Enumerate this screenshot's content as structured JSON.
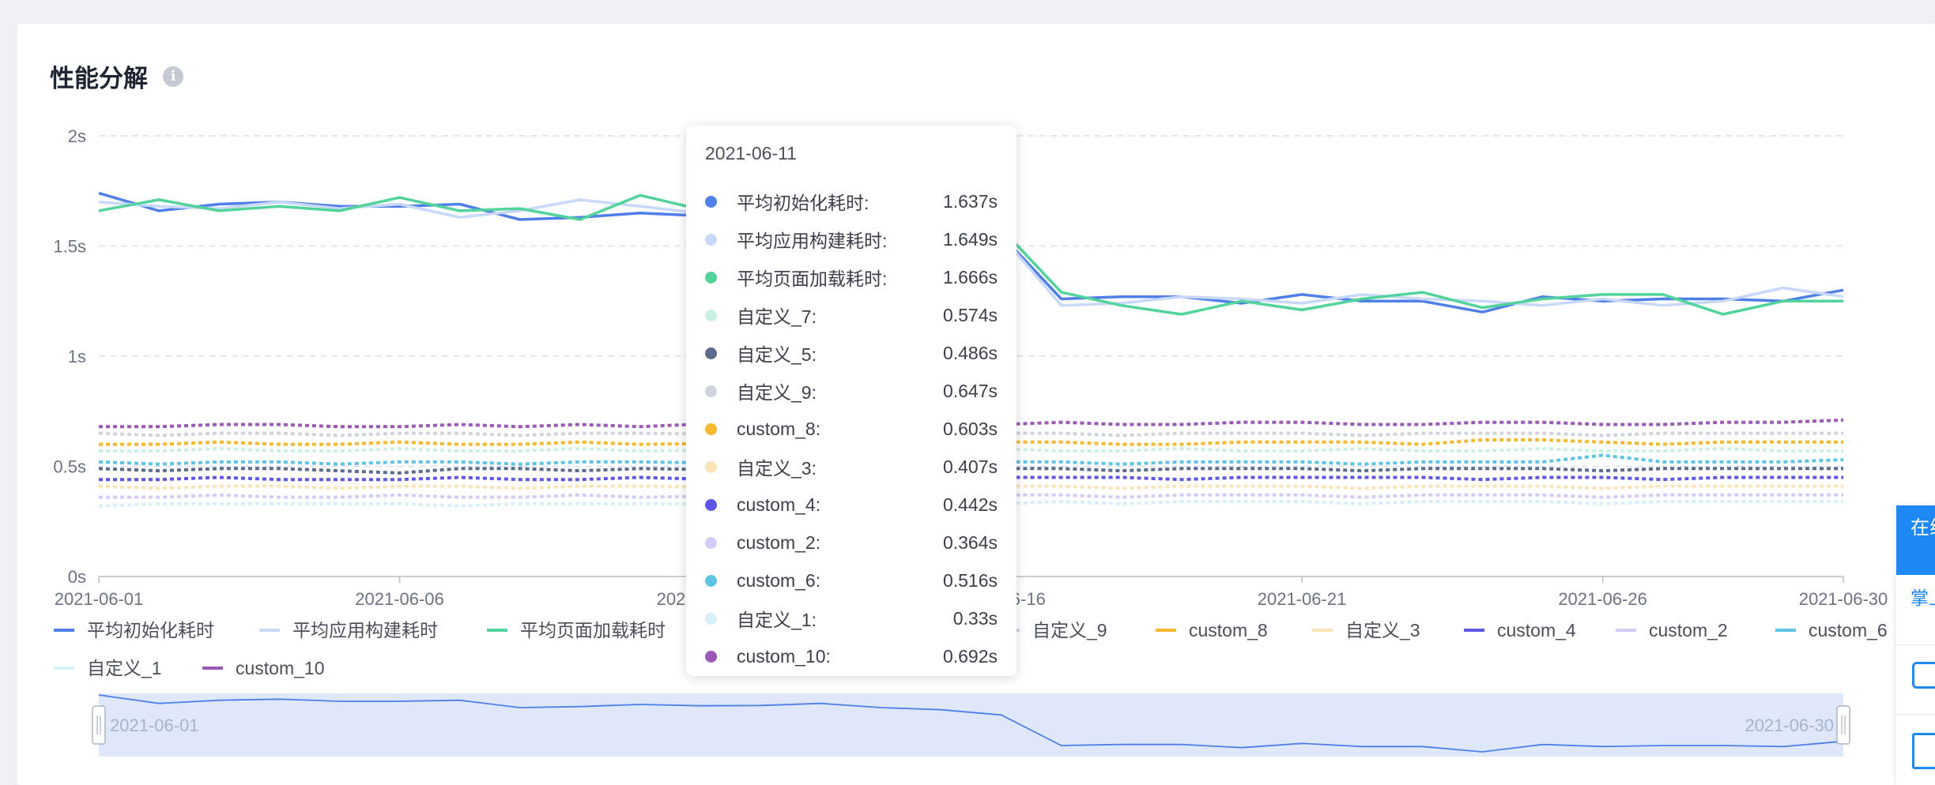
{
  "card": {
    "title": "性能分解",
    "info_icon": "info-icon"
  },
  "colors": {
    "grid": "#dcdfe6",
    "axis_text": "#6b7280",
    "zoom_fill": "#dfe7fb",
    "zoom_line": "#4f7fe8"
  },
  "chart_data": {
    "type": "line",
    "title": "性能分解",
    "y_ticks": [
      "0s",
      "0.5s",
      "1s",
      "1.5s",
      "2s"
    ],
    "ylim": [
      0,
      2
    ],
    "x_tick_labels": [
      "2021-06-01",
      "2021-06-06",
      "2021-06-11",
      "2021-06-16",
      "2021-06-21",
      "2021-06-26",
      "2021-06-30"
    ],
    "x": [
      "2021-06-01",
      "2021-06-02",
      "2021-06-03",
      "2021-06-04",
      "2021-06-05",
      "2021-06-06",
      "2021-06-07",
      "2021-06-08",
      "2021-06-09",
      "2021-06-10",
      "2021-06-11",
      "2021-06-12",
      "2021-06-13",
      "2021-06-14",
      "2021-06-15",
      "2021-06-16",
      "2021-06-17",
      "2021-06-18",
      "2021-06-19",
      "2021-06-20",
      "2021-06-21",
      "2021-06-22",
      "2021-06-23",
      "2021-06-24",
      "2021-06-25",
      "2021-06-26",
      "2021-06-27",
      "2021-06-28",
      "2021-06-29",
      "2021-06-30"
    ],
    "grid": true,
    "legend_position": "bottom",
    "series": [
      {
        "name": "平均初始化耗时",
        "color": "#4f7fe8",
        "dashed": false,
        "values": [
          1.74,
          1.66,
          1.69,
          1.7,
          1.68,
          1.68,
          1.69,
          1.62,
          1.63,
          1.65,
          1.637,
          1.64,
          1.66,
          1.62,
          1.6,
          1.55,
          1.26,
          1.27,
          1.27,
          1.24,
          1.28,
          1.25,
          1.25,
          1.2,
          1.27,
          1.25,
          1.26,
          1.26,
          1.25,
          1.3
        ]
      },
      {
        "name": "平均应用构建耗时",
        "color": "#c8d8fa",
        "dashed": false,
        "values": [
          1.7,
          1.68,
          1.67,
          1.7,
          1.67,
          1.69,
          1.63,
          1.66,
          1.71,
          1.68,
          1.649,
          1.66,
          1.69,
          1.63,
          1.6,
          1.55,
          1.23,
          1.24,
          1.27,
          1.26,
          1.24,
          1.28,
          1.26,
          1.25,
          1.23,
          1.26,
          1.23,
          1.25,
          1.31,
          1.27
        ]
      },
      {
        "name": "平均页面加载耗时",
        "color": "#52d39b",
        "dashed": false,
        "values": [
          1.66,
          1.71,
          1.66,
          1.68,
          1.66,
          1.72,
          1.66,
          1.67,
          1.62,
          1.73,
          1.666,
          1.65,
          1.68,
          1.64,
          1.62,
          1.58,
          1.29,
          1.23,
          1.19,
          1.25,
          1.21,
          1.26,
          1.29,
          1.22,
          1.26,
          1.28,
          1.28,
          1.19,
          1.25,
          1.25
        ]
      },
      {
        "name": "自定义_7",
        "color": "#c9f0e2",
        "dashed": true,
        "values": [
          0.57,
          0.57,
          0.58,
          0.57,
          0.57,
          0.58,
          0.57,
          0.57,
          0.58,
          0.57,
          0.574,
          0.57,
          0.58,
          0.57,
          0.57,
          0.58,
          0.57,
          0.57,
          0.58,
          0.57,
          0.57,
          0.58,
          0.57,
          0.57,
          0.58,
          0.57,
          0.57,
          0.58,
          0.57,
          0.57
        ]
      },
      {
        "name": "自定义_5",
        "color": "#5b6b8c",
        "dashed": true,
        "values": [
          0.49,
          0.48,
          0.49,
          0.49,
          0.48,
          0.47,
          0.49,
          0.49,
          0.48,
          0.49,
          0.486,
          0.49,
          0.48,
          0.49,
          0.49,
          0.49,
          0.49,
          0.48,
          0.49,
          0.49,
          0.49,
          0.48,
          0.49,
          0.49,
          0.49,
          0.48,
          0.49,
          0.49,
          0.49,
          0.49
        ]
      },
      {
        "name": "自定义_9",
        "color": "#ced3de",
        "dashed": true,
        "values": [
          0.65,
          0.64,
          0.65,
          0.65,
          0.64,
          0.65,
          0.65,
          0.64,
          0.65,
          0.65,
          0.647,
          0.65,
          0.64,
          0.65,
          0.65,
          0.65,
          0.65,
          0.64,
          0.65,
          0.65,
          0.65,
          0.64,
          0.65,
          0.65,
          0.65,
          0.64,
          0.65,
          0.65,
          0.65,
          0.65
        ]
      },
      {
        "name": "custom_8",
        "color": "#f5b82e",
        "dashed": true,
        "values": [
          0.6,
          0.6,
          0.61,
          0.6,
          0.6,
          0.61,
          0.6,
          0.6,
          0.61,
          0.6,
          0.603,
          0.6,
          0.61,
          0.6,
          0.6,
          0.61,
          0.61,
          0.6,
          0.6,
          0.61,
          0.61,
          0.61,
          0.6,
          0.62,
          0.62,
          0.61,
          0.6,
          0.61,
          0.61,
          0.61
        ]
      },
      {
        "name": "自定义_3",
        "color": "#fbe3b6",
        "dashed": true,
        "values": [
          0.41,
          0.4,
          0.41,
          0.41,
          0.4,
          0.41,
          0.41,
          0.4,
          0.41,
          0.41,
          0.407,
          0.41,
          0.4,
          0.41,
          0.41,
          0.41,
          0.41,
          0.4,
          0.41,
          0.41,
          0.41,
          0.4,
          0.41,
          0.41,
          0.41,
          0.4,
          0.41,
          0.41,
          0.41,
          0.41
        ]
      },
      {
        "name": "custom_4",
        "color": "#5f55e6",
        "dashed": true,
        "values": [
          0.44,
          0.44,
          0.45,
          0.44,
          0.44,
          0.44,
          0.45,
          0.44,
          0.44,
          0.45,
          0.442,
          0.44,
          0.45,
          0.44,
          0.44,
          0.45,
          0.45,
          0.45,
          0.44,
          0.45,
          0.45,
          0.45,
          0.45,
          0.44,
          0.45,
          0.45,
          0.44,
          0.45,
          0.45,
          0.45
        ]
      },
      {
        "name": "custom_2",
        "color": "#d2cdf7",
        "dashed": true,
        "values": [
          0.36,
          0.36,
          0.37,
          0.36,
          0.36,
          0.37,
          0.36,
          0.36,
          0.37,
          0.36,
          0.364,
          0.36,
          0.37,
          0.36,
          0.36,
          0.37,
          0.37,
          0.36,
          0.37,
          0.37,
          0.37,
          0.36,
          0.37,
          0.37,
          0.37,
          0.36,
          0.37,
          0.37,
          0.37,
          0.37
        ]
      },
      {
        "name": "custom_6",
        "color": "#5ec4e3",
        "dashed": true,
        "values": [
          0.52,
          0.51,
          0.52,
          0.52,
          0.51,
          0.52,
          0.52,
          0.51,
          0.52,
          0.52,
          0.516,
          0.52,
          0.51,
          0.52,
          0.52,
          0.52,
          0.52,
          0.51,
          0.52,
          0.52,
          0.52,
          0.51,
          0.52,
          0.52,
          0.52,
          0.55,
          0.52,
          0.52,
          0.52,
          0.53
        ]
      },
      {
        "name": "自定义_1",
        "color": "#d6f0f8",
        "dashed": true,
        "values": [
          0.32,
          0.33,
          0.33,
          0.33,
          0.33,
          0.33,
          0.32,
          0.33,
          0.33,
          0.33,
          0.33,
          0.33,
          0.33,
          0.33,
          0.33,
          0.33,
          0.34,
          0.33,
          0.34,
          0.34,
          0.34,
          0.33,
          0.34,
          0.34,
          0.34,
          0.33,
          0.34,
          0.34,
          0.34,
          0.34
        ]
      },
      {
        "name": "custom_10",
        "color": "#9b59b6",
        "dashed": true,
        "values": [
          0.68,
          0.68,
          0.69,
          0.69,
          0.68,
          0.68,
          0.69,
          0.68,
          0.69,
          0.68,
          0.692,
          0.69,
          0.68,
          0.69,
          0.69,
          0.69,
          0.7,
          0.69,
          0.69,
          0.7,
          0.7,
          0.69,
          0.69,
          0.7,
          0.7,
          0.69,
          0.69,
          0.7,
          0.7,
          0.71
        ]
      }
    ],
    "legend_visible": [
      "平均初始化耗时",
      "平均应用构建耗时",
      "平均页面加载耗时",
      "自定义_7",
      "自定义_5",
      "自定义_9",
      "custom_8",
      "自定义_3",
      "custom_4",
      "custom_2",
      "custom_6",
      "自定义_1",
      "custom_10"
    ],
    "zoom_slider": {
      "start_label": "2021-06-01",
      "end_label": "2021-06-30"
    }
  },
  "tooltip": {
    "date": "2021-06-11",
    "rows": [
      {
        "label": "平均初始化耗时:",
        "value": "1.637s",
        "color": "#4f7fe8"
      },
      {
        "label": "平均应用构建耗时:",
        "value": "1.649s",
        "color": "#c8d8fa"
      },
      {
        "label": "平均页面加载耗时:",
        "value": "1.666s",
        "color": "#52d39b"
      },
      {
        "label": "自定义_7:",
        "value": "0.574s",
        "color": "#c9f0e2"
      },
      {
        "label": "自定义_5:",
        "value": "0.486s",
        "color": "#5b6b8c"
      },
      {
        "label": "自定义_9:",
        "value": "0.647s",
        "color": "#ced3de"
      },
      {
        "label": "custom_8:",
        "value": "0.603s",
        "color": "#f5b82e"
      },
      {
        "label": "自定义_3:",
        "value": "0.407s",
        "color": "#fbe3b6"
      },
      {
        "label": "custom_4:",
        "value": "0.442s",
        "color": "#5f55e6"
      },
      {
        "label": "custom_2:",
        "value": "0.364s",
        "color": "#d2cdf7"
      },
      {
        "label": "custom_6:",
        "value": "0.516s",
        "color": "#5ec4e3"
      },
      {
        "label": "自定义_1:",
        "value": "0.33s",
        "color": "#d6f0f8"
      },
      {
        "label": "custom_10:",
        "value": "0.692s",
        "color": "#9b59b6"
      }
    ]
  },
  "side_widget": {
    "head_text": "在线客服",
    "link_text": "掌上好友"
  }
}
